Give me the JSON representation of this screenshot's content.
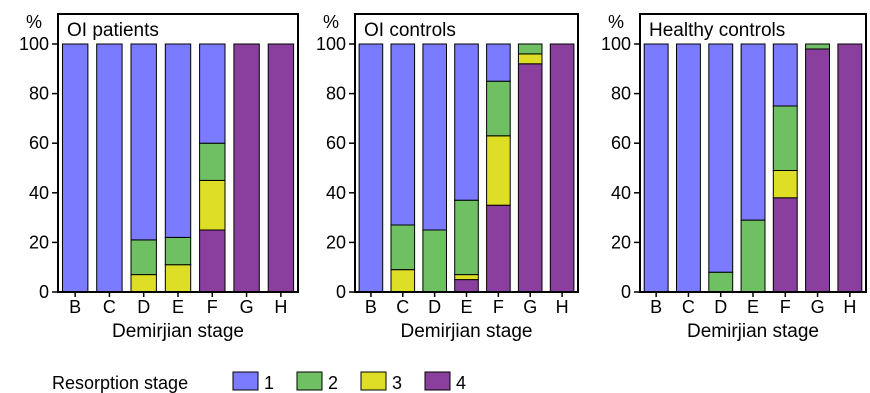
{
  "colors": {
    "stage1": "#7b7bff",
    "stage2": "#6fbf63",
    "stage3": "#dede26",
    "stage4": "#8a3f9e"
  },
  "legend": {
    "label": "Resorption stage",
    "items": [
      {
        "label": "1",
        "color_key": "stage1"
      },
      {
        "label": "2",
        "color_key": "stage2"
      },
      {
        "label": "3",
        "color_key": "stage3"
      },
      {
        "label": "4",
        "color_key": "stage4"
      }
    ]
  },
  "chart_data": [
    {
      "type": "bar",
      "stacked": true,
      "title": "OI patients",
      "ylabel": "%",
      "xlabel": "Demirjian stage",
      "ylim": [
        0,
        100
      ],
      "yticks": [
        0,
        20,
        40,
        60,
        80,
        100
      ],
      "categories": [
        "B",
        "C",
        "D",
        "E",
        "F",
        "G",
        "H"
      ],
      "series": [
        {
          "name": "4",
          "values": [
            0,
            0,
            0,
            0,
            25,
            100,
            100
          ]
        },
        {
          "name": "3",
          "values": [
            0,
            0,
            7,
            11,
            20,
            0,
            0
          ]
        },
        {
          "name": "2",
          "values": [
            0,
            0,
            14,
            11,
            15,
            0,
            0
          ]
        },
        {
          "name": "1",
          "values": [
            100,
            100,
            79,
            78,
            40,
            0,
            0
          ]
        }
      ]
    },
    {
      "type": "bar",
      "stacked": true,
      "title": "OI controls",
      "ylabel": "%",
      "xlabel": "Demirjian stage",
      "ylim": [
        0,
        100
      ],
      "yticks": [
        0,
        20,
        40,
        60,
        80,
        100
      ],
      "categories": [
        "B",
        "C",
        "D",
        "E",
        "F",
        "G",
        "H"
      ],
      "series": [
        {
          "name": "4",
          "values": [
            0,
            0,
            0,
            5,
            35,
            92,
            100
          ]
        },
        {
          "name": "3",
          "values": [
            0,
            9,
            0,
            2,
            28,
            4,
            0
          ]
        },
        {
          "name": "2",
          "values": [
            0,
            18,
            25,
            30,
            22,
            4,
            0
          ]
        },
        {
          "name": "1",
          "values": [
            100,
            73,
            75,
            63,
            15,
            0,
            0
          ]
        }
      ]
    },
    {
      "type": "bar",
      "stacked": true,
      "title": "Healthy controls",
      "ylabel": "%",
      "xlabel": "Demirjian stage",
      "ylim": [
        0,
        100
      ],
      "yticks": [
        0,
        20,
        40,
        60,
        80,
        100
      ],
      "categories": [
        "B",
        "C",
        "D",
        "E",
        "F",
        "G",
        "H"
      ],
      "series": [
        {
          "name": "4",
          "values": [
            0,
            0,
            0,
            0,
            38,
            98,
            100
          ]
        },
        {
          "name": "3",
          "values": [
            0,
            0,
            0,
            0,
            11,
            0,
            0
          ]
        },
        {
          "name": "2",
          "values": [
            0,
            0,
            8,
            29,
            26,
            2,
            0
          ]
        },
        {
          "name": "1",
          "values": [
            100,
            100,
            92,
            71,
            25,
            0,
            0
          ]
        }
      ]
    }
  ]
}
